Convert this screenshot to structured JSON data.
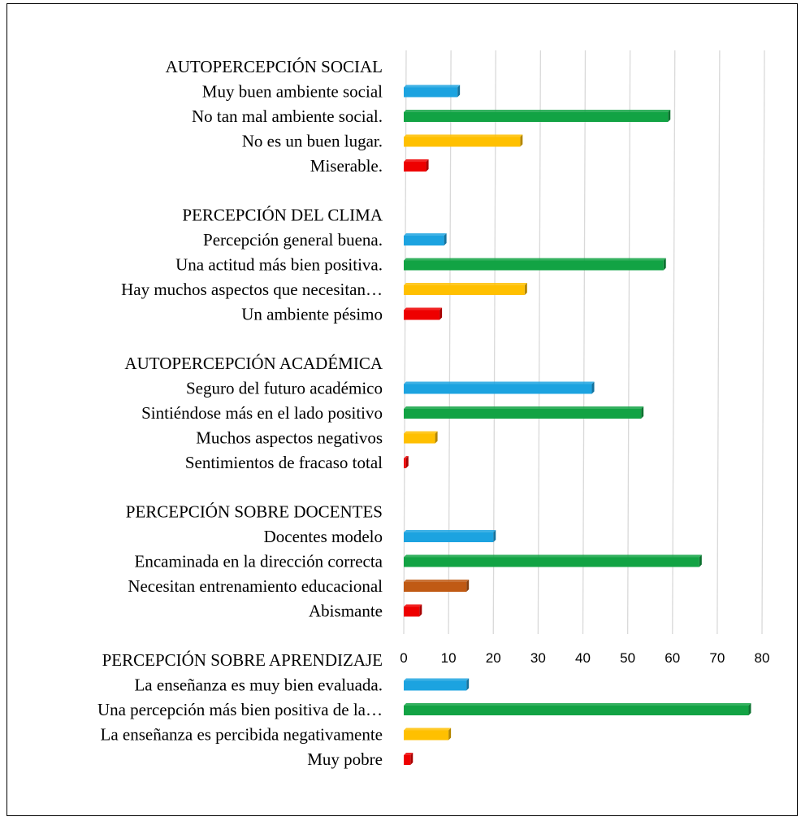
{
  "chart_data": {
    "type": "bar",
    "orientation": "horizontal",
    "title": "",
    "xlabel": "",
    "ylabel": "",
    "xlim": [
      0,
      80
    ],
    "x_ticks": [
      "0",
      "10",
      "20",
      "30",
      "40",
      "50",
      "60",
      "70",
      "80"
    ],
    "grid": "vertical",
    "legend": "none",
    "colors": {
      "blue": "#1ca3e0",
      "green": "#12a344",
      "yellow": "#ffc000",
      "red": "#ee0000",
      "brown": "#c05a14",
      "grid": "#d9d9d9"
    },
    "groups": [
      {
        "heading": "AUTOPERCEPCIÓN SOCIAL",
        "items": [
          {
            "label": "Muy buen ambiente social",
            "value": 12,
            "color": "blue"
          },
          {
            "label": "No tan mal ambiente social.",
            "value": 59,
            "color": "green"
          },
          {
            "label": "No es un buen lugar.",
            "value": 26,
            "color": "yellow"
          },
          {
            "label": "Miserable.",
            "value": 5,
            "color": "red"
          }
        ]
      },
      {
        "heading": "PERCEPCIÓN DEL CLIMA",
        "items": [
          {
            "label": "Percepción general buena.",
            "value": 9,
            "color": "blue"
          },
          {
            "label": "Una actitud más bien positiva.",
            "value": 58,
            "color": "green"
          },
          {
            "label": "Hay muchos aspectos que necesitan…",
            "value": 27,
            "color": "yellow"
          },
          {
            "label": "Un ambiente pésimo",
            "value": 8,
            "color": "red"
          }
        ]
      },
      {
        "heading": "AUTOPERCEPCIÓN ACADÉMICA",
        "items": [
          {
            "label": "Seguro del futuro académico",
            "value": 42,
            "color": "blue"
          },
          {
            "label": "Sintiéndose más en el lado positivo",
            "value": 53,
            "color": "green"
          },
          {
            "label": "Muchos aspectos negativos",
            "value": 7,
            "color": "yellow"
          },
          {
            "label": "Sentimientos de fracaso total",
            "value": 0.5,
            "color": "red"
          }
        ]
      },
      {
        "heading": "PERCEPCIÓN SOBRE DOCENTES",
        "items": [
          {
            "label": "Docentes modelo",
            "value": 20,
            "color": "blue"
          },
          {
            "label": "Encaminada en la dirección correcta",
            "value": 66,
            "color": "green"
          },
          {
            "label": "Necesitan entrenamiento educacional",
            "value": 14,
            "color": "brown"
          },
          {
            "label": "Abismante",
            "value": 3.5,
            "color": "red"
          }
        ]
      },
      {
        "heading": "PERCEPCIÓN SOBRE APRENDIZAJE",
        "items": [
          {
            "label": "La enseñanza es muy bien evaluada.",
            "value": 14,
            "color": "blue"
          },
          {
            "label": "Una percepción más bien positiva de la…",
            "value": 77,
            "color": "green"
          },
          {
            "label": "La enseñanza es percibida negativamente",
            "value": 10,
            "color": "yellow"
          },
          {
            "label": "Muy pobre",
            "value": 1.5,
            "color": "red"
          }
        ]
      }
    ]
  }
}
